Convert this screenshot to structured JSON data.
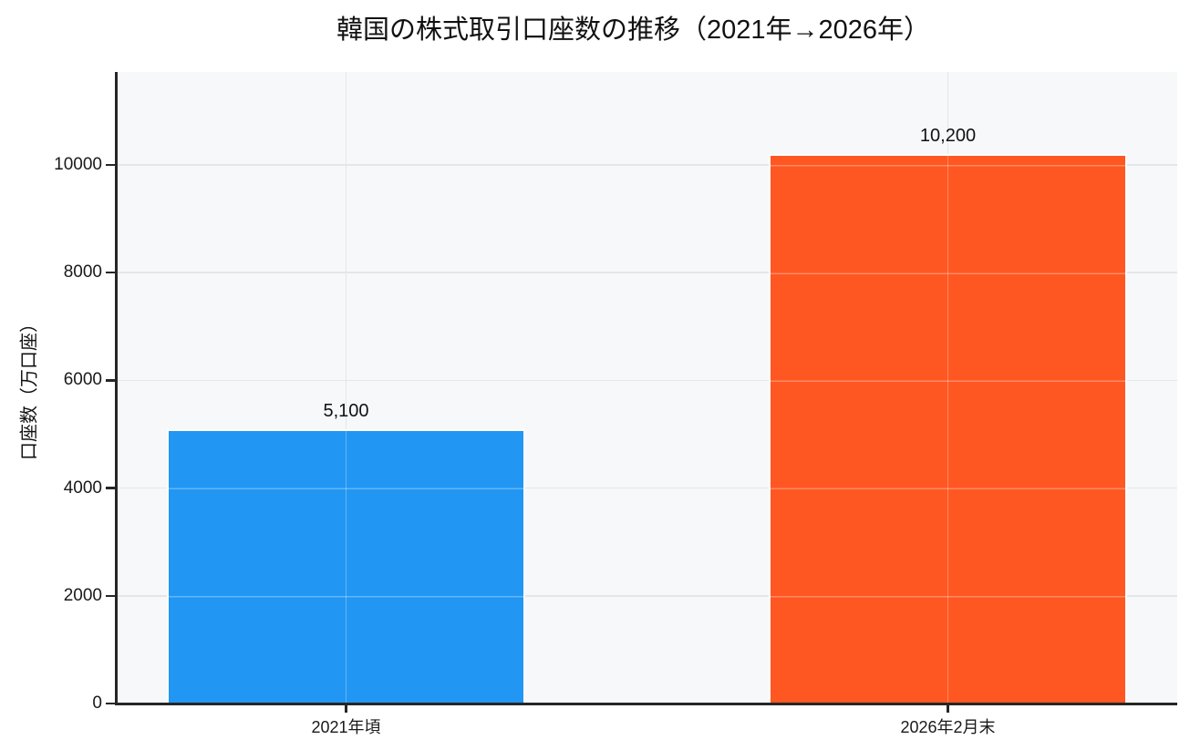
{
  "chart_data": {
    "type": "bar",
    "title": "韓国の株式取引口座数の推移（2021年→2026年）",
    "ylabel": "口座数（万口座）",
    "xlabel": "",
    "categories": [
      "2021年頃",
      "2026年2月末"
    ],
    "values": [
      5100,
      10200
    ],
    "value_labels": [
      "5,100",
      "10,200"
    ],
    "series": [
      {
        "name": "口座数",
        "values": [
          5100,
          10200
        ]
      }
    ],
    "bar_colors": [
      "#2196F3",
      "#FF5722"
    ],
    "yticks": [
      0,
      2000,
      4000,
      6000,
      8000,
      10000
    ],
    "ytick_labels": [
      "0",
      "2000",
      "4000",
      "6000",
      "8000",
      "10000"
    ],
    "ylim": [
      0,
      11726
    ],
    "grid": true,
    "legend": "none",
    "colors": {
      "plot_background": "#f7f8fa",
      "page_background": "#ffffff",
      "gridline": "#e4e6e9",
      "axis": "#262626",
      "text": "#111111",
      "bar_blue": "#2196F3",
      "bar_orange": "#FF5722"
    }
  }
}
